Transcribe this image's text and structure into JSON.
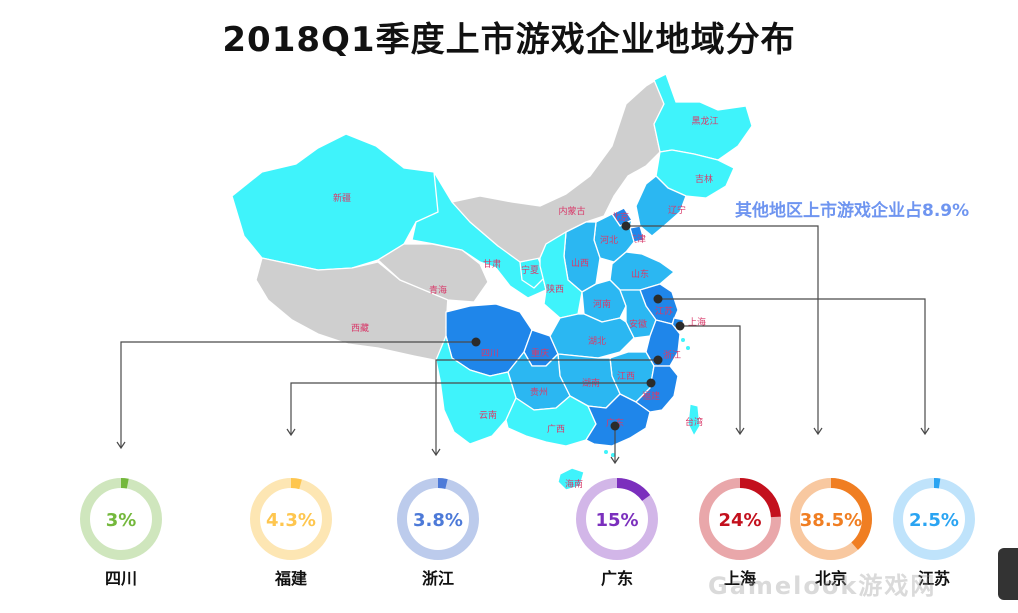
{
  "title": "2018Q1季度上市游戏企业地域分布",
  "note": "其他地区上市游戏企业占8.9%",
  "watermark": "Gamelook游戏网",
  "colors": {
    "gray": "#cfcfcf",
    "light": "#3ff3fb",
    "mid": "#2bb7f2",
    "dark": "#1f86ea",
    "note": "#6f95f0",
    "label": "#d83a6a",
    "border": "#ffffff"
  },
  "map": {
    "provinces": [
      {
        "id": "xinjiang",
        "label": "新疆",
        "fill": "light"
      },
      {
        "id": "xizang",
        "label": "西藏",
        "fill": "gray"
      },
      {
        "id": "qinghai",
        "label": "青海",
        "fill": "gray"
      },
      {
        "id": "gansu",
        "label": "甘肃",
        "fill": "light"
      },
      {
        "id": "ningxia",
        "label": "宁夏",
        "fill": "light"
      },
      {
        "id": "neimenggu",
        "label": "内蒙古",
        "fill": "gray"
      },
      {
        "id": "heilongjiang",
        "label": "黑龙江",
        "fill": "light"
      },
      {
        "id": "jilin",
        "label": "吉林",
        "fill": "light"
      },
      {
        "id": "liaoning",
        "label": "辽宁",
        "fill": "mid"
      },
      {
        "id": "beijing",
        "label": "北京",
        "fill": "dark"
      },
      {
        "id": "tianjin",
        "label": "天津",
        "fill": "dark"
      },
      {
        "id": "hebei",
        "label": "河北",
        "fill": "mid"
      },
      {
        "id": "shanxi",
        "label": "山西",
        "fill": "mid"
      },
      {
        "id": "shaanxi",
        "label": "陕西",
        "fill": "light"
      },
      {
        "id": "shandong",
        "label": "山东",
        "fill": "mid"
      },
      {
        "id": "henan",
        "label": "河南",
        "fill": "mid"
      },
      {
        "id": "jiangsu",
        "label": "江苏",
        "fill": "dark"
      },
      {
        "id": "anhui",
        "label": "安徽",
        "fill": "mid"
      },
      {
        "id": "shanghai",
        "label": "上海",
        "fill": "dark"
      },
      {
        "id": "sichuan",
        "label": "四川",
        "fill": "dark"
      },
      {
        "id": "chongqing",
        "label": "重庆",
        "fill": "dark"
      },
      {
        "id": "hubei",
        "label": "湖北",
        "fill": "mid"
      },
      {
        "id": "zhejiang",
        "label": "浙江",
        "fill": "dark"
      },
      {
        "id": "jiangxi",
        "label": "江西",
        "fill": "mid"
      },
      {
        "id": "hunan",
        "label": "湖南",
        "fill": "mid"
      },
      {
        "id": "guizhou",
        "label": "贵州",
        "fill": "mid"
      },
      {
        "id": "yunnan",
        "label": "云南",
        "fill": "light"
      },
      {
        "id": "guangxi",
        "label": "广西",
        "fill": "light"
      },
      {
        "id": "guangdong",
        "label": "广东",
        "fill": "dark"
      },
      {
        "id": "fujian",
        "label": "福建",
        "fill": "dark"
      },
      {
        "id": "taiwan",
        "label": "台湾",
        "fill": "light"
      },
      {
        "id": "hainan",
        "label": "海南",
        "fill": "light"
      }
    ]
  },
  "chart_data": {
    "type": "pie",
    "title": "2018Q1季度上市游戏企业地域分布",
    "note": "其他地区上市游戏企业占8.9%",
    "series": [
      {
        "name": "四川",
        "value": 3,
        "label": "3%",
        "color": "#74b83c",
        "track": "#cfe6bd"
      },
      {
        "name": "福建",
        "value": 4.3,
        "label": "4.3%",
        "color": "#fec64f",
        "track": "#fde6b3"
      },
      {
        "name": "浙江",
        "value": 3.8,
        "label": "3.8%",
        "color": "#4d7ad8",
        "track": "#bccbec"
      },
      {
        "name": "广东",
        "value": 15,
        "label": "15%",
        "color": "#7b2fbd",
        "track": "#d2b6e8"
      },
      {
        "name": "上海",
        "value": 24,
        "label": "24%",
        "color": "#c3101d",
        "track": "#e9a7aa"
      },
      {
        "name": "北京",
        "value": 38.5,
        "label": "38.5%",
        "color": "#f07e22",
        "track": "#f8c8a0"
      },
      {
        "name": "江苏",
        "value": 2.5,
        "label": "2.5%",
        "color": "#2aa4f2",
        "track": "#bfe3fb"
      }
    ],
    "other": {
      "name": "其他地区",
      "value": 8.9
    }
  }
}
